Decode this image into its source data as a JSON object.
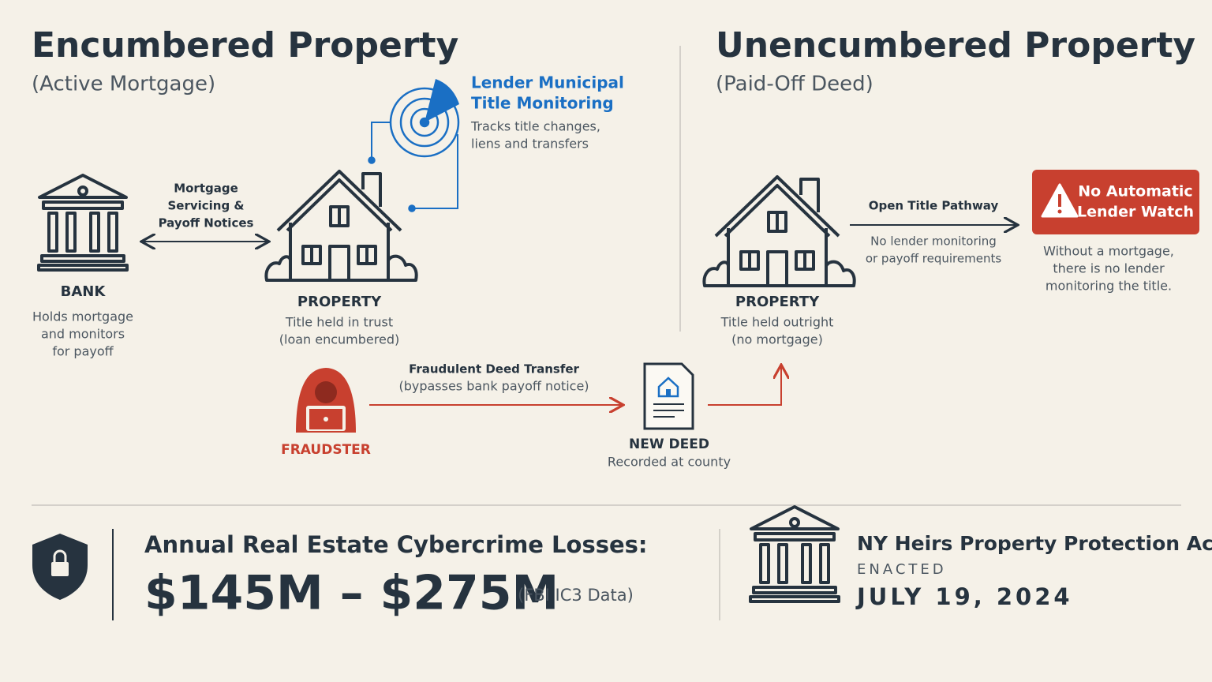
{
  "encumbered": {
    "title": "Encumbered Property",
    "subtitle": "(Active Mortgage)",
    "bank": {
      "label": "BANK",
      "description": [
        "Holds mortgage",
        "and monitors",
        "for payoff"
      ]
    },
    "servicing": [
      "Mortgage",
      "Servicing &",
      "Payoff Notices"
    ],
    "monitoring": {
      "title": [
        "Lender Municipal",
        "Title Monitoring"
      ],
      "description": [
        "Tracks title changes,",
        "liens and transfers"
      ]
    },
    "property": {
      "label": "PROPERTY",
      "description": [
        "Title held in trust",
        "(loan encumbered)"
      ]
    }
  },
  "fraud": {
    "fraudster": "FRAUDSTER",
    "transfer": {
      "title": "Fraudulent Deed Transfer",
      "note": "(bypasses bank payoff notice)"
    },
    "new_deed": {
      "label": "NEW DEED",
      "description": "Recorded at county"
    }
  },
  "unencumbered": {
    "title": "Unencumbered Property",
    "subtitle": "(Paid-Off Deed)",
    "pathway": {
      "title": "Open Title Pathway",
      "description": [
        "No lender monitoring",
        "or payoff requirements"
      ]
    },
    "warning": {
      "title": [
        "No Automatic",
        "Lender Watch"
      ],
      "description": [
        "Without a mortgage,",
        "there is no lender",
        "monitoring the title."
      ]
    },
    "property": {
      "label": "PROPERTY",
      "description": [
        "Title held outright",
        "(no mortgage)"
      ]
    }
  },
  "footer": {
    "losses": {
      "label": "Annual Real Estate Cybercrime Losses:",
      "amount": "$145M – $275M",
      "source": "(FBI IC3 Data)"
    },
    "act": {
      "title": "NY Heirs Property Protection Act",
      "status": "ENACTED",
      "date": "JULY 19, 2024"
    }
  }
}
